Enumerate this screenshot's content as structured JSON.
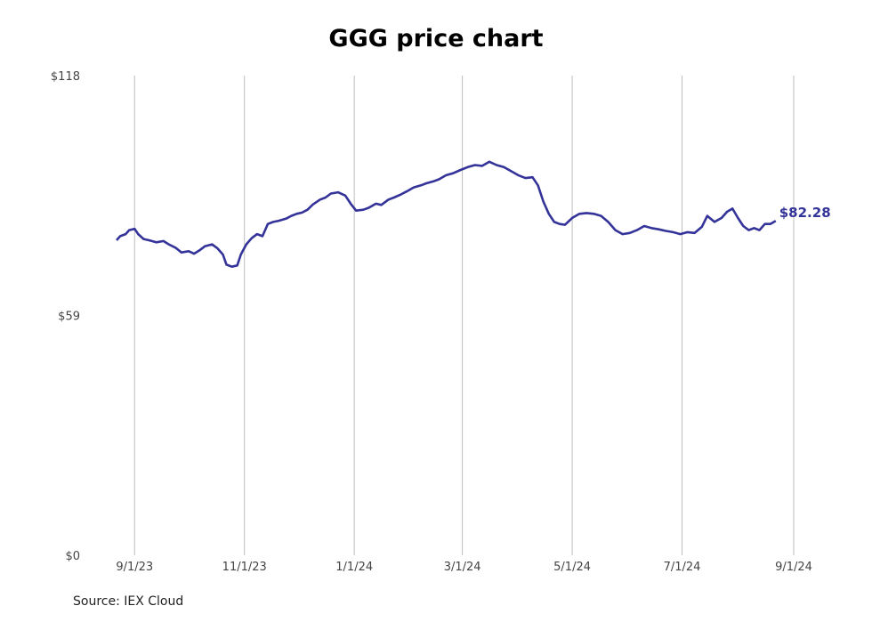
{
  "chart_data": {
    "type": "line",
    "title": "GGG price chart",
    "source": "Source: IEX Cloud",
    "y_ticks": [
      {
        "value": 0,
        "label": "$0"
      },
      {
        "value": 59,
        "label": "$59"
      },
      {
        "value": 118,
        "label": "$118"
      }
    ],
    "ylim": [
      0,
      118
    ],
    "x_range": [
      "2023-08-20",
      "2024-09-01"
    ],
    "x_ticks": [
      {
        "date": "2023-09-01",
        "label": "9/1/23"
      },
      {
        "date": "2023-11-01",
        "label": "11/1/23"
      },
      {
        "date": "2024-01-01",
        "label": "1/1/24"
      },
      {
        "date": "2024-03-01",
        "label": "3/1/24"
      },
      {
        "date": "2024-05-01",
        "label": "5/1/24"
      },
      {
        "date": "2024-07-01",
        "label": "7/1/24"
      },
      {
        "date": "2024-09-01",
        "label": "9/1/24"
      }
    ],
    "grid": "vertical",
    "line_color": "#333399",
    "last_value_label": "$82.28",
    "series": [
      {
        "points": [
          [
            "2023-08-22",
            77.5
          ],
          [
            "2023-08-24",
            78.5
          ],
          [
            "2023-08-27",
            79.0
          ],
          [
            "2023-08-29",
            80.0
          ],
          [
            "2023-09-01",
            80.3
          ],
          [
            "2023-09-03",
            79.0
          ],
          [
            "2023-09-06",
            77.8
          ],
          [
            "2023-09-09",
            77.5
          ],
          [
            "2023-09-13",
            77.0
          ],
          [
            "2023-09-17",
            77.3
          ],
          [
            "2023-09-20",
            76.5
          ],
          [
            "2023-09-24",
            75.6
          ],
          [
            "2023-09-27",
            74.5
          ],
          [
            "2023-10-01",
            74.8
          ],
          [
            "2023-10-04",
            74.2
          ],
          [
            "2023-10-07",
            75.0
          ],
          [
            "2023-10-10",
            76.0
          ],
          [
            "2023-10-14",
            76.5
          ],
          [
            "2023-10-17",
            75.5
          ],
          [
            "2023-10-20",
            74.0
          ],
          [
            "2023-10-22",
            71.5
          ],
          [
            "2023-10-25",
            71.0
          ],
          [
            "2023-10-28",
            71.3
          ],
          [
            "2023-10-30",
            74.0
          ],
          [
            "2023-11-02",
            76.5
          ],
          [
            "2023-11-05",
            78.0
          ],
          [
            "2023-11-08",
            79.0
          ],
          [
            "2023-11-11",
            78.5
          ],
          [
            "2023-11-14",
            81.5
          ],
          [
            "2023-11-17",
            82.0
          ],
          [
            "2023-11-20",
            82.3
          ],
          [
            "2023-11-24",
            82.8
          ],
          [
            "2023-11-27",
            83.5
          ],
          [
            "2023-11-30",
            84.0
          ],
          [
            "2023-12-03",
            84.3
          ],
          [
            "2023-12-06",
            85.0
          ],
          [
            "2023-12-09",
            86.3
          ],
          [
            "2023-12-13",
            87.5
          ],
          [
            "2023-12-16",
            88.0
          ],
          [
            "2023-12-19",
            89.0
          ],
          [
            "2023-12-23",
            89.3
          ],
          [
            "2023-12-27",
            88.5
          ],
          [
            "2023-12-30",
            86.5
          ],
          [
            "2024-01-02",
            84.8
          ],
          [
            "2024-01-06",
            85.0
          ],
          [
            "2024-01-09",
            85.5
          ],
          [
            "2024-01-13",
            86.5
          ],
          [
            "2024-01-16",
            86.2
          ],
          [
            "2024-01-20",
            87.5
          ],
          [
            "2024-01-23",
            88.0
          ],
          [
            "2024-01-27",
            88.8
          ],
          [
            "2024-01-30",
            89.5
          ],
          [
            "2024-02-03",
            90.5
          ],
          [
            "2024-02-07",
            91.0
          ],
          [
            "2024-02-10",
            91.5
          ],
          [
            "2024-02-14",
            92.0
          ],
          [
            "2024-02-17",
            92.5
          ],
          [
            "2024-02-21",
            93.5
          ],
          [
            "2024-02-25",
            94.0
          ],
          [
            "2024-02-29",
            94.8
          ],
          [
            "2024-03-04",
            95.5
          ],
          [
            "2024-03-08",
            96.0
          ],
          [
            "2024-03-12",
            95.8
          ],
          [
            "2024-03-16",
            96.8
          ],
          [
            "2024-03-20",
            96.0
          ],
          [
            "2024-03-24",
            95.5
          ],
          [
            "2024-03-28",
            94.5
          ],
          [
            "2024-04-01",
            93.5
          ],
          [
            "2024-04-05",
            92.8
          ],
          [
            "2024-04-09",
            93.0
          ],
          [
            "2024-04-12",
            91.0
          ],
          [
            "2024-04-15",
            87.0
          ],
          [
            "2024-04-18",
            84.0
          ],
          [
            "2024-04-21",
            82.0
          ],
          [
            "2024-04-24",
            81.5
          ],
          [
            "2024-04-27",
            81.3
          ],
          [
            "2024-05-01",
            83.0
          ],
          [
            "2024-05-05",
            84.0
          ],
          [
            "2024-05-09",
            84.2
          ],
          [
            "2024-05-13",
            84.0
          ],
          [
            "2024-05-17",
            83.5
          ],
          [
            "2024-05-21",
            82.0
          ],
          [
            "2024-05-25",
            80.0
          ],
          [
            "2024-05-29",
            79.0
          ],
          [
            "2024-06-02",
            79.3
          ],
          [
            "2024-06-06",
            80.0
          ],
          [
            "2024-06-10",
            81.0
          ],
          [
            "2024-06-14",
            80.5
          ],
          [
            "2024-06-18",
            80.2
          ],
          [
            "2024-06-22",
            79.8
          ],
          [
            "2024-06-26",
            79.5
          ],
          [
            "2024-06-30",
            79.0
          ],
          [
            "2024-07-04",
            79.5
          ],
          [
            "2024-07-08",
            79.3
          ],
          [
            "2024-07-12",
            80.8
          ],
          [
            "2024-07-15",
            83.5
          ],
          [
            "2024-07-19",
            82.0
          ],
          [
            "2024-07-23",
            83.0
          ],
          [
            "2024-07-26",
            84.5
          ],
          [
            "2024-07-29",
            85.3
          ],
          [
            "2024-08-01",
            83.0
          ],
          [
            "2024-08-04",
            81.0
          ],
          [
            "2024-08-07",
            80.0
          ],
          [
            "2024-08-10",
            80.5
          ],
          [
            "2024-08-13",
            80.0
          ],
          [
            "2024-08-16",
            81.5
          ],
          [
            "2024-08-19",
            81.5
          ],
          [
            "2024-08-22",
            82.28
          ]
        ]
      }
    ]
  }
}
